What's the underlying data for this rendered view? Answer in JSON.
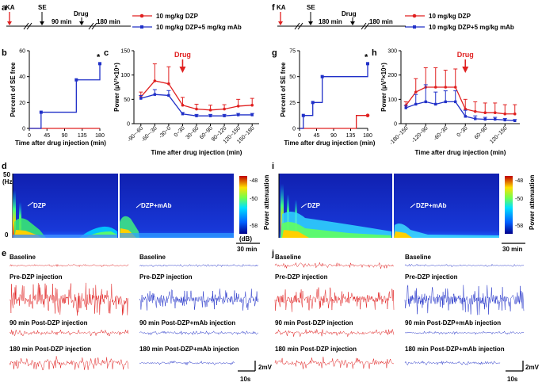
{
  "figure": {
    "colors": {
      "dzp": "#e02020",
      "mab": "#2030c8",
      "axis": "#000000"
    },
    "left": {
      "panel_a": {
        "letter": "a",
        "labels": {
          "ka": "KA",
          "se": "SE",
          "drug": "Drug",
          "t90": "90 min",
          "t180": "180 min"
        }
      },
      "panel_f": {
        "letter": "f",
        "labels": {
          "ka": "KA",
          "se": "SE",
          "drug": "Drug",
          "t180a": "180 min",
          "t180b": "180 min"
        }
      },
      "legend": {
        "dzp": "10 mg/kg DZP",
        "mab": "10 mg/kg DZP+5 mg/kg mAb"
      },
      "spectrogram": {
        "d_letter": "d",
        "i_letter": "i",
        "ytop": "50",
        "yunit": "(Hz)",
        "ybot": "0",
        "dzp_label": "DZP",
        "mab_label": "DZP+mAb",
        "cb_ticks": [
          "-48",
          "-50",
          "-58"
        ],
        "cb_unit": "(dB)",
        "cb_title": "Power attenuation",
        "scale": "30 min"
      },
      "traces": {
        "e_letter": "e",
        "j_letter": "j",
        "baseline": "Baseline",
        "pre": "Pre-DZP injection",
        "post90": "90 min Post-DZP injection",
        "post90_mab": "90 min Post-DZP+mAb injection",
        "post180": "180 min Post-DZP injection",
        "post180_mab": "180 min Post-DZP+mAb injection",
        "scale_v": "2mV",
        "scale_t": "10s"
      }
    }
  },
  "chart_data": [
    {
      "id": "b",
      "type": "line",
      "title": "",
      "xlabel": "Time after drug injection (min)",
      "ylabel": "Percent of SE free",
      "xlim": [
        0,
        180
      ],
      "ylim": [
        0,
        60
      ],
      "x_ticks": [
        "0",
        "45",
        "90",
        "135",
        "180"
      ],
      "y_ticks": [
        "0",
        "20",
        "40",
        "60"
      ],
      "series": [
        {
          "name": "10 mg/kg DZP",
          "step_x": [
            0,
            180
          ],
          "step_y": [
            0,
            0
          ]
        },
        {
          "name": "10 mg/kg DZP+5 mg/kg mAb",
          "step_x": [
            0,
            30,
            120,
            180
          ],
          "step_y": [
            0,
            12.5,
            37.5,
            50
          ],
          "points": [
            [
              30,
              12.5
            ],
            [
              120,
              37.5
            ],
            [
              180,
              50
            ]
          ]
        }
      ],
      "annotation": "*"
    },
    {
      "id": "c",
      "type": "line",
      "title": "",
      "xlabel": "Time after drug injection (min)",
      "ylabel": "Power (μV²×10⁵)",
      "ylim": [
        0,
        150
      ],
      "categories": [
        "-90~-60",
        "-60~-30",
        "-30~0",
        "0~30",
        "30~60",
        "60~90",
        "90~120",
        "120~150",
        "150~180"
      ],
      "y_ticks": [
        "0",
        "50",
        "100",
        "150"
      ],
      "series": [
        {
          "name": "10 mg/kg DZP",
          "values": [
            55,
            88,
            82,
            38,
            30,
            28,
            30,
            36,
            38
          ],
          "errors": [
            10,
            35,
            35,
            16,
            10,
            10,
            9,
            14,
            14
          ]
        },
        {
          "name": "10 mg/kg DZP+5 mg/kg mAb",
          "values": [
            52,
            60,
            58,
            20,
            16,
            16,
            16,
            18,
            18
          ],
          "errors": [
            6,
            10,
            10,
            3,
            3,
            3,
            3,
            3,
            3
          ]
        }
      ],
      "annotation": "Drug"
    },
    {
      "id": "g",
      "type": "line",
      "title": "",
      "xlabel": "Time after drug injection (min)",
      "ylabel": "Percent of SE free",
      "xlim": [
        0,
        180
      ],
      "ylim": [
        0,
        75
      ],
      "x_ticks": [
        "0",
        "45",
        "90",
        "135",
        "180"
      ],
      "y_ticks": [
        "0",
        "25",
        "50",
        "75"
      ],
      "series": [
        {
          "name": "10 mg/kg DZP",
          "step_x": [
            0,
            150,
            180
          ],
          "step_y": [
            0,
            12.5,
            12.5
          ],
          "points": [
            [
              180,
              12.5
            ]
          ]
        },
        {
          "name": "10 mg/kg DZP+5 mg/kg mAb",
          "step_x": [
            0,
            10,
            35,
            60,
            180
          ],
          "step_y": [
            0,
            12.5,
            25,
            50,
            62.5
          ],
          "points": [
            [
              10,
              12.5
            ],
            [
              35,
              25
            ],
            [
              60,
              50
            ],
            [
              180,
              62.5
            ]
          ]
        }
      ],
      "annotation": "*"
    },
    {
      "id": "h",
      "type": "line",
      "title": "",
      "xlabel": "Time after drug injection (min)",
      "ylabel": "Power (μV²×10⁵)",
      "ylim": [
        0,
        300
      ],
      "categories": [
        "-180~-150",
        "-150~-120",
        "-120~-90",
        "-90~-60",
        "-60~-30",
        "-30~0",
        "0~30",
        "30~60",
        "60~90",
        "90~120",
        "120~150",
        "150~180"
      ],
      "tick_labels": [
        "-180~150",
        "-120~90",
        "-60~30",
        "0~30",
        "60~90",
        "120~150"
      ],
      "y_ticks": [
        "0",
        "100",
        "200",
        "300"
      ],
      "series": [
        {
          "name": "10 mg/kg DZP",
          "values": [
            75,
            130,
            150,
            150,
            150,
            150,
            60,
            50,
            45,
            45,
            40,
            40
          ],
          "errors": [
            15,
            55,
            80,
            80,
            70,
            75,
            40,
            40,
            40,
            40,
            38,
            38
          ]
        },
        {
          "name": "10 mg/kg DZP+5 mg/kg mAb",
          "values": [
            65,
            80,
            90,
            80,
            90,
            90,
            30,
            20,
            18,
            18,
            15,
            12
          ],
          "errors": [
            10,
            40,
            70,
            50,
            45,
            45,
            25,
            12,
            8,
            8,
            6,
            5
          ]
        }
      ],
      "annotation": "Drug"
    }
  ]
}
